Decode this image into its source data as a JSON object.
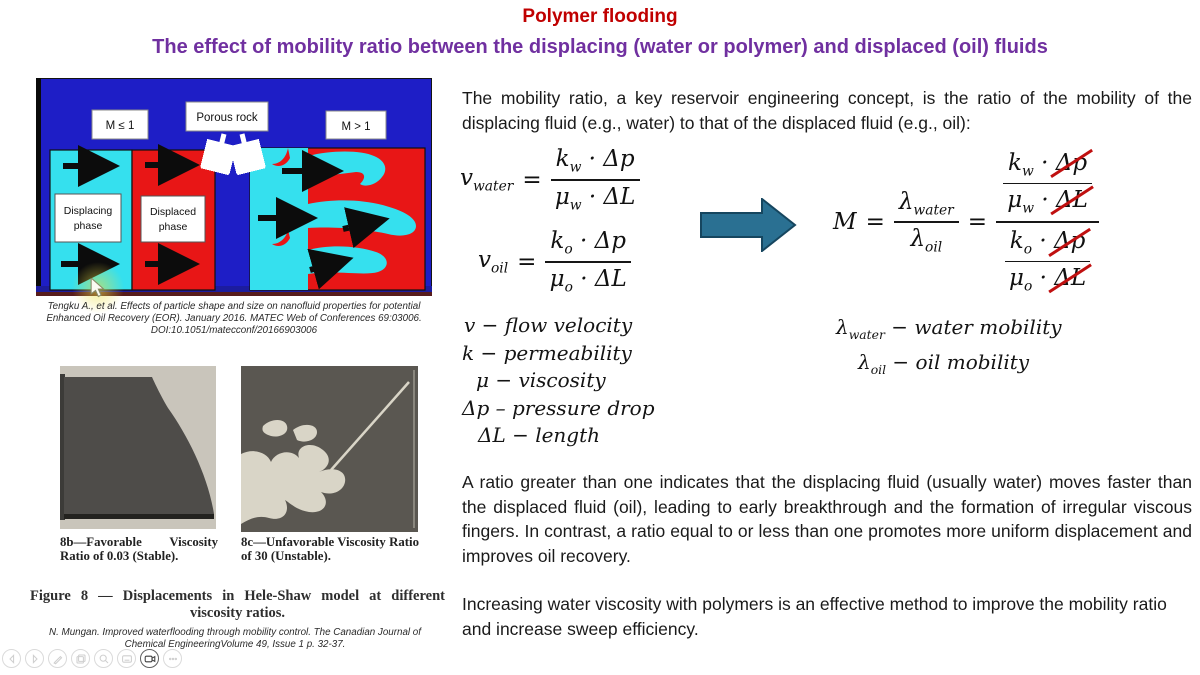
{
  "slide": {
    "title": "Polymer flooding",
    "subtitle": "The effect of mobility ratio between the displacing (water or polymer) and displaced (oil) fluids"
  },
  "diagram": {
    "label_low": "M ≤ 1",
    "label_rock": "Porous rock",
    "label_high": "M > 1",
    "displacing_lines": [
      "Displacing",
      "phase"
    ],
    "displaced_lines": [
      "Displaced",
      "phase"
    ],
    "citation": "Tengku A., et al. Effects of particle shape and size on nanofluid properties for potential Enhanced Oil Recovery (EOR). January 2016. MATEC Web of Conferences 69:03006. DOI:10.1051/matecconf/20166903006",
    "colors": {
      "background": "#1e1ec6",
      "displacing_phase": "#35e0ee",
      "displaced_phase": "#e81616"
    }
  },
  "figure8": {
    "caption_b": "8b—Favorable Viscosity Ratio of 0.03 (Stable).",
    "caption_c": "8c—Unfavorable Viscosity Ratio of 30 (Unstable).",
    "figure_caption": "Figure 8 — Displacements in Hele-Shaw model at different viscosity ratios.",
    "citation": "N. Mungan. Improved waterflooding through mobility control. The Canadian Journal of Chemical EngineeringVolume 49, Issue 1 p. 32-37."
  },
  "content": {
    "intro": "The mobility ratio, a key reservoir engineering concept, is the ratio of the mobility of the displacing fluid (e.g., water) to that of the displaced fluid (e.g., oil):",
    "ratio_paragraph": "A ratio greater than one indicates that the displacing fluid (usually water) moves faster than the displaced fluid (oil), leading to early breakthrough and the formation of irregular viscous fingers. In contrast, a ratio equal to or less than one promotes more uniform displacement and improves oil recovery.",
    "polymer_paragraph": "Increasing water viscosity with polymers is an effective method to improve the mobility ratio and increase sweep efficiency."
  },
  "math": {
    "v_water": "v_{water}",
    "v_oil": "v_{oil}",
    "eq": "=",
    "num_w": "k_{w} · Δp",
    "den_w": "μ_{w} · ΔL",
    "num_o": "k_{o} · Δp",
    "den_o": "μ_{o} · ΔL",
    "M": "M",
    "lam_w": "λ_{water}",
    "lam_o": "λ_{oil}",
    "num_w_c": "k_{w} · ~Δp~",
    "den_w_c": "μ_{w} · ~ΔL~",
    "num_o_c": "k_{o} · ~Δp~",
    "den_o_c": "μ_{o} · ~ΔL~",
    "cancel_color": "#c01010",
    "arrow_color": "#2a7092"
  },
  "definitions": {
    "left": [
      "v  − flow velocity",
      "k  − permeability",
      "μ  − viscosity",
      "Δp – pressure drop",
      "ΔL  − length"
    ],
    "right": [
      "λ_{water}  − water mobility",
      "λ_{oil}  − oil mobility"
    ]
  },
  "toolbar": {
    "buttons": [
      "previous-slide",
      "next-slide",
      "pen",
      "copy-slide",
      "zoom",
      "note-card",
      "camera",
      "more-options"
    ]
  }
}
